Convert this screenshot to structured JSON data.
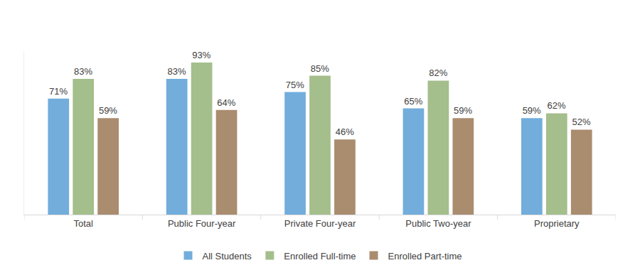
{
  "chart_data": {
    "type": "bar",
    "categories": [
      "Total",
      "Public Four-year",
      "Private Four-year",
      "Public Two-year",
      "Proprietary"
    ],
    "series": [
      {
        "name": "All Students",
        "color": "#72ADDC",
        "values": [
          71,
          83,
          75,
          65,
          59
        ],
        "value_labels": [
          "71%",
          "83%",
          "75%",
          "65%",
          "59%"
        ]
      },
      {
        "name": "Enrolled Full-time",
        "color": "#A4BE8C",
        "values": [
          83,
          93,
          85,
          82,
          62
        ],
        "value_labels": [
          "83%",
          "93%",
          "85%",
          "82%",
          "62%"
        ]
      },
      {
        "name": "Enrolled Part-time",
        "color": "#AA8C6F",
        "values": [
          59,
          64,
          46,
          59,
          52
        ],
        "value_labels": [
          "59%",
          "64%",
          "46%",
          "59%",
          "52%"
        ]
      }
    ],
    "ylim": [
      0,
      100
    ],
    "grid": false,
    "legend": "bottom",
    "data_labels": true,
    "tick_labels": "x"
  }
}
